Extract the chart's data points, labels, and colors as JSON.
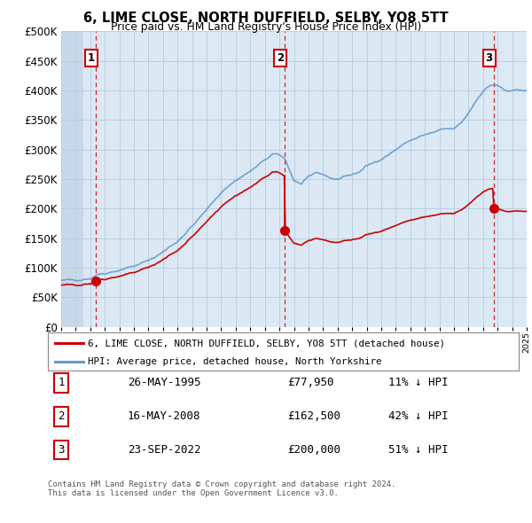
{
  "title": "6, LIME CLOSE, NORTH DUFFIELD, SELBY, YO8 5TT",
  "subtitle": "Price paid vs. HM Land Registry's House Price Index (HPI)",
  "ytick_values": [
    0,
    50000,
    100000,
    150000,
    200000,
    250000,
    300000,
    350000,
    400000,
    450000,
    500000
  ],
  "ylim": [
    0,
    500000
  ],
  "sale_points": [
    {
      "year": 1995.38,
      "price": 77950,
      "label": "1"
    },
    {
      "year": 2008.37,
      "price": 162500,
      "label": "2"
    },
    {
      "year": 2022.72,
      "price": 200000,
      "label": "3"
    }
  ],
  "vline_years": [
    1995.38,
    2008.37,
    2022.72
  ],
  "sale_color": "#cc0000",
  "hpi_color": "#6699cc",
  "legend_sale_label": "6, LIME CLOSE, NORTH DUFFIELD, SELBY, YO8 5TT (detached house)",
  "legend_hpi_label": "HPI: Average price, detached house, North Yorkshire",
  "table_rows": [
    {
      "num": "1",
      "date": "26-MAY-1995",
      "price": "£77,950",
      "hpi": "11% ↓ HPI"
    },
    {
      "num": "2",
      "date": "16-MAY-2008",
      "price": "£162,500",
      "hpi": "42% ↓ HPI"
    },
    {
      "num": "3",
      "date": "23-SEP-2022",
      "price": "£200,000",
      "hpi": "51% ↓ HPI"
    }
  ],
  "footnote": "Contains HM Land Registry data © Crown copyright and database right 2024.\nThis data is licensed under the Open Government Licence v3.0.",
  "bg_color": "#ffffff",
  "plot_bg_color": "#dce9f5",
  "grid_color": "#b8cfe0",
  "hatch_color": "#c0d0e0"
}
